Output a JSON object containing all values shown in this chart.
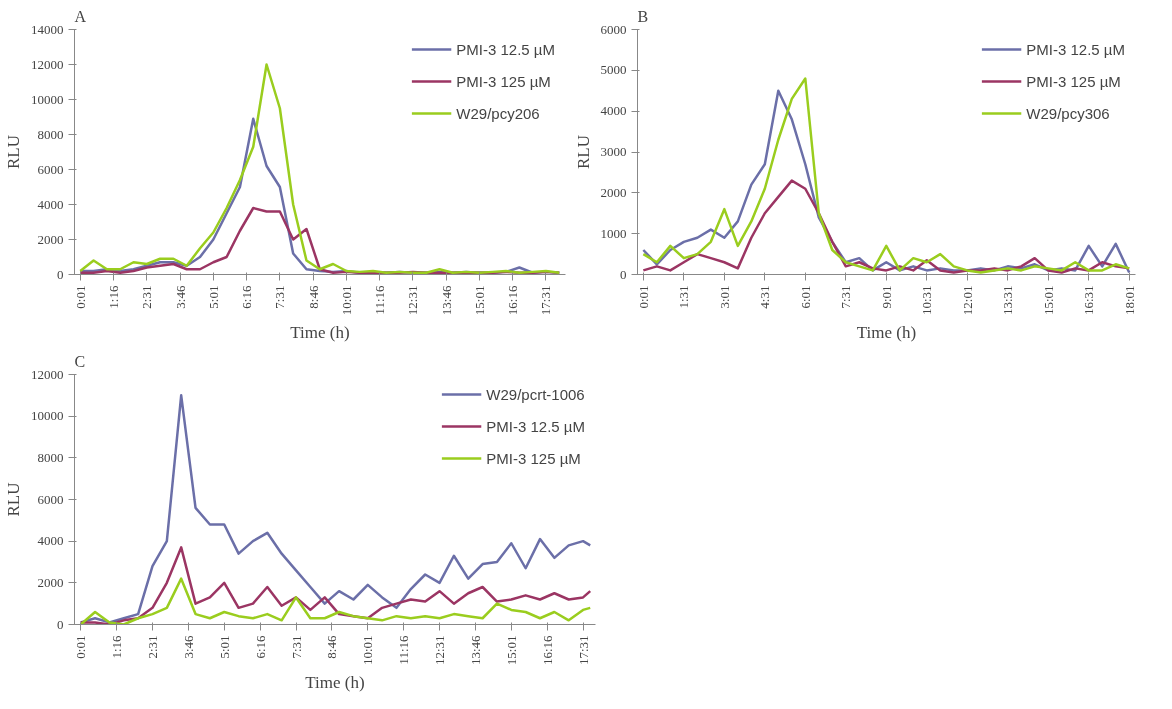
{
  "chart_data": [
    {
      "type": "line",
      "title": "A",
      "xlabel": "Time (h)",
      "ylabel": "RLU",
      "legend": "top right",
      "xlim": [
        -0.2,
        18.25
      ],
      "ylim": [
        0,
        14000
      ],
      "yticks": [
        0,
        2000,
        4000,
        6000,
        8000,
        10000,
        12000,
        14000
      ],
      "xticks": [
        {
          "value": 0.0167,
          "label": "0:01"
        },
        {
          "value": 1.2667,
          "label": "1:16"
        },
        {
          "value": 2.5167,
          "label": "2:31"
        },
        {
          "value": 3.7667,
          "label": "3:46"
        },
        {
          "value": 5.0167,
          "label": "5:01"
        },
        {
          "value": 6.2667,
          "label": "6:16"
        },
        {
          "value": 7.5167,
          "label": "7:31"
        },
        {
          "value": 8.7667,
          "label": "8:46"
        },
        {
          "value": 10.0167,
          "label": "10:01"
        },
        {
          "value": 11.2667,
          "label": "11:16"
        },
        {
          "value": 12.5167,
          "label": "12:31"
        },
        {
          "value": 13.7667,
          "label": "13:46"
        },
        {
          "value": 15.0167,
          "label": "15:01"
        },
        {
          "value": 16.2667,
          "label": "16:16"
        },
        {
          "value": 17.5167,
          "label": "17:31"
        }
      ],
      "x": [
        0.0167,
        0.5167,
        1.0167,
        1.5167,
        2.0167,
        2.5167,
        3.0167,
        3.5167,
        4.0167,
        4.5167,
        5.0167,
        5.5167,
        6.0167,
        6.5167,
        7.0167,
        7.5167,
        8.0167,
        8.5167,
        9.0167,
        9.5167,
        10.0167,
        10.5167,
        11.0167,
        11.5167,
        12.0167,
        12.5167,
        13.0167,
        13.5167,
        14.0167,
        14.5167,
        15.0167,
        15.5167,
        16.0167,
        16.5167,
        17.0167,
        17.5167,
        18.0167
      ],
      "series": [
        {
          "name": "PMI-3 12.5 µM",
          "color": "#6b6fa8",
          "values": [
            200,
            200,
            300,
            200,
            300,
            500,
            700,
            700,
            500,
            1000,
            2000,
            3500,
            5000,
            8900,
            6200,
            5000,
            1200,
            300,
            200,
            150,
            200,
            100,
            150,
            100,
            150,
            100,
            100,
            150,
            100,
            150,
            100,
            100,
            150,
            400,
            100,
            150,
            100
          ]
        },
        {
          "name": "PMI-3 125 µM",
          "color": "#9b3563",
          "values": [
            100,
            100,
            200,
            100,
            200,
            400,
            500,
            600,
            300,
            300,
            700,
            1000,
            2500,
            3800,
            3600,
            3600,
            2000,
            2600,
            300,
            100,
            150,
            100,
            100,
            100,
            100,
            150,
            100,
            100,
            100,
            100,
            100,
            100,
            150,
            100,
            100,
            150,
            100
          ]
        },
        {
          "name": "W29/pcy206",
          "color": "#9acd1e",
          "values": [
            200,
            800,
            300,
            300,
            700,
            600,
            900,
            900,
            500,
            1500,
            2400,
            3800,
            5400,
            7300,
            12000,
            9500,
            4000,
            800,
            300,
            600,
            200,
            150,
            200,
            100,
            150,
            100,
            100,
            300,
            100,
            150,
            100,
            150,
            200,
            100,
            150,
            200,
            100
          ]
        }
      ]
    },
    {
      "type": "line",
      "title": "B",
      "xlabel": "Time (h)",
      "ylabel": "RLU",
      "legend": "top right",
      "xlim": [
        -0.2,
        18.25
      ],
      "ylim": [
        0,
        6000
      ],
      "yticks": [
        0,
        1000,
        2000,
        3000,
        4000,
        5000,
        6000
      ],
      "xticks": [
        {
          "value": 0.0167,
          "label": "0:01"
        },
        {
          "value": 1.5167,
          "label": "1:31"
        },
        {
          "value": 3.0167,
          "label": "3:01"
        },
        {
          "value": 4.5167,
          "label": "4:31"
        },
        {
          "value": 6.0167,
          "label": "6:01"
        },
        {
          "value": 7.5167,
          "label": "7:31"
        },
        {
          "value": 9.0167,
          "label": "9:01"
        },
        {
          "value": 10.5167,
          "label": "10:31"
        },
        {
          "value": 12.0167,
          "label": "12:01"
        },
        {
          "value": 13.5167,
          "label": "13:31"
        },
        {
          "value": 15.0167,
          "label": "15:01"
        },
        {
          "value": 16.5167,
          "label": "16:31"
        },
        {
          "value": 18.0167,
          "label": "18:01"
        }
      ],
      "x": [
        0.0167,
        0.5167,
        1.0167,
        1.5167,
        2.0167,
        2.5167,
        3.0167,
        3.5167,
        4.0167,
        4.5167,
        5.0167,
        5.5167,
        6.0167,
        6.5167,
        7.0167,
        7.5167,
        8.0167,
        8.5167,
        9.0167,
        9.5167,
        10.0167,
        10.5167,
        11.0167,
        11.5167,
        12.0167,
        12.5167,
        13.0167,
        13.5167,
        14.0167,
        14.5167,
        15.0167,
        15.5167,
        16.0167,
        16.5167,
        17.0167,
        17.5167,
        18.0167
      ],
      "series": [
        {
          "name": "PMI-3 12.5 µM",
          "color": "#6b6fa8",
          "values": [
            600,
            250,
            600,
            800,
            900,
            1100,
            900,
            1300,
            2200,
            2700,
            4500,
            3800,
            2700,
            1400,
            800,
            300,
            400,
            100,
            300,
            100,
            200,
            100,
            150,
            100,
            100,
            150,
            100,
            200,
            150,
            250,
            100,
            150,
            100,
            700,
            200,
            750,
            50
          ]
        },
        {
          "name": "PMI-3 125 µM",
          "color": "#9b3563",
          "values": [
            100,
            200,
            100,
            300,
            500,
            400,
            300,
            150,
            900,
            1500,
            1900,
            2300,
            2100,
            1500,
            800,
            200,
            300,
            150,
            100,
            200,
            100,
            350,
            100,
            50,
            100,
            100,
            150,
            100,
            200,
            400,
            100,
            50,
            150,
            100,
            300,
            200,
            150
          ]
        },
        {
          "name": "W29/pcy306",
          "color": "#9acd1e",
          "values": [
            500,
            300,
            700,
            400,
            500,
            800,
            1600,
            700,
            1300,
            2100,
            3300,
            4300,
            4800,
            1500,
            600,
            300,
            200,
            100,
            700,
            100,
            400,
            300,
            500,
            200,
            100,
            50,
            100,
            150,
            100,
            200,
            150,
            100,
            300,
            100,
            100,
            250,
            150
          ]
        }
      ]
    },
    {
      "type": "line",
      "title": "C",
      "xlabel": "Time (h)",
      "ylabel": "RLU",
      "legend": "top right",
      "xlim": [
        -0.2,
        17.95
      ],
      "ylim": [
        0,
        12000
      ],
      "yticks": [
        0,
        2000,
        4000,
        6000,
        8000,
        10000,
        12000
      ],
      "xticks": [
        {
          "value": 0.0167,
          "label": "0:01"
        },
        {
          "value": 1.2667,
          "label": "1:16"
        },
        {
          "value": 2.5167,
          "label": "2:31"
        },
        {
          "value": 3.7667,
          "label": "3:46"
        },
        {
          "value": 5.0167,
          "label": "5:01"
        },
        {
          "value": 6.2667,
          "label": "6:16"
        },
        {
          "value": 7.5167,
          "label": "7:31"
        },
        {
          "value": 8.7667,
          "label": "8:46"
        },
        {
          "value": 10.0167,
          "label": "10:01"
        },
        {
          "value": 11.2667,
          "label": "11:16"
        },
        {
          "value": 12.5167,
          "label": "12:31"
        },
        {
          "value": 13.7667,
          "label": "13:46"
        },
        {
          "value": 15.0167,
          "label": "15:01"
        },
        {
          "value": 16.2667,
          "label": "16:16"
        },
        {
          "value": 17.5167,
          "label": "17:31"
        }
      ],
      "x": [
        0.0167,
        0.5167,
        1.0167,
        1.5167,
        2.0167,
        2.5167,
        3.0167,
        3.5167,
        4.0167,
        4.5167,
        5.0167,
        5.5167,
        6.0167,
        6.5167,
        7.0167,
        7.5167,
        8.0167,
        8.5167,
        9.0167,
        9.5167,
        10.0167,
        10.5167,
        11.0167,
        11.5167,
        12.0167,
        12.5167,
        13.0167,
        13.5167,
        14.0167,
        14.5167,
        15.0167,
        15.5167,
        16.0167,
        16.5167,
        17.0167,
        17.5167,
        17.7667
      ],
      "series": [
        {
          "name": "W29/pcrt-1006",
          "color": "#6b6fa8",
          "values": [
            100,
            300,
            100,
            300,
            500,
            2800,
            4000,
            11000,
            5600,
            4800,
            4800,
            3400,
            4000,
            4400,
            3400,
            2600,
            1800,
            1000,
            1600,
            1200,
            1900,
            1300,
            800,
            1700,
            2400,
            2000,
            3300,
            2200,
            2900,
            3000,
            3900,
            2700,
            4100,
            3200,
            3800,
            4000,
            3800
          ]
        },
        {
          "name": "PMI-3 12.5 µM",
          "color": "#9b3563",
          "values": [
            100,
            100,
            0,
            200,
            300,
            800,
            2000,
            3700,
            1000,
            1300,
            2000,
            800,
            1000,
            1800,
            900,
            1300,
            700,
            1300,
            500,
            400,
            300,
            800,
            1000,
            1200,
            1100,
            1600,
            1000,
            1500,
            1800,
            1100,
            1200,
            1400,
            1200,
            1500,
            1200,
            1300,
            1600
          ]
        },
        {
          "name": "PMI-3 125 µM",
          "color": "#9acd1e",
          "values": [
            0,
            600,
            100,
            0,
            300,
            500,
            800,
            2200,
            500,
            300,
            600,
            400,
            300,
            500,
            200,
            1300,
            300,
            300,
            600,
            400,
            300,
            200,
            400,
            300,
            400,
            300,
            500,
            400,
            300,
            1000,
            700,
            600,
            300,
            600,
            200,
            700,
            800
          ]
        }
      ]
    }
  ]
}
